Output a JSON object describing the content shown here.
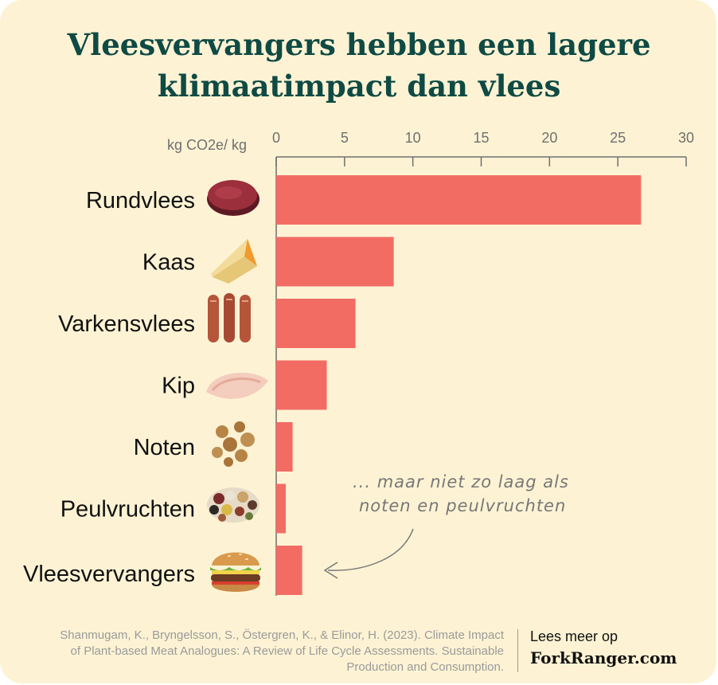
{
  "title_lines": [
    "Vleesvervangers hebben een lagere",
    "klimaatimpact dan vlees"
  ],
  "chart_data": {
    "type": "bar",
    "orientation": "horizontal",
    "title": "Vleesvervangers hebben een lagere klimaatimpact dan vlees",
    "xlabel": "kg CO2e/ kg",
    "xlim": [
      0,
      30
    ],
    "xticks": [
      0,
      5,
      10,
      15,
      20,
      25,
      30
    ],
    "x_axis_position": "top",
    "categories": [
      "Rundvlees",
      "Kaas",
      "Varkensvlees",
      "Kip",
      "Noten",
      "Peulvruchten",
      "Vleesvervangers"
    ],
    "values": [
      26.7,
      8.6,
      5.8,
      3.7,
      1.2,
      0.7,
      1.9
    ],
    "bar_color": "#f36c64",
    "annotation": {
      "lines": [
        "... maar niet zo laag als",
        "noten en peulvruchten"
      ],
      "points_to": "Vleesvervangers"
    }
  },
  "icons": [
    "steak-icon",
    "cheese-icon",
    "sausages-icon",
    "chicken-breast-icon",
    "walnuts-icon",
    "legumes-icon",
    "burger-icon"
  ],
  "footer": {
    "source_lines": [
      "Shanmugam, K., Bryngelsson, S., Östergren, K., & Elinor, H. (2023). Climate Impact",
      "of Plant-based Meat Analogues: A Review of Life Cycle Assessments. Sustainable",
      "Production and Consumption."
    ],
    "more_label": "Lees meer op",
    "site": "ForkRanger.com"
  },
  "colors": {
    "background": "#fdf3d4",
    "title": "#0f4a44",
    "bar": "#f36c64",
    "axis": "#6f6f6f"
  }
}
